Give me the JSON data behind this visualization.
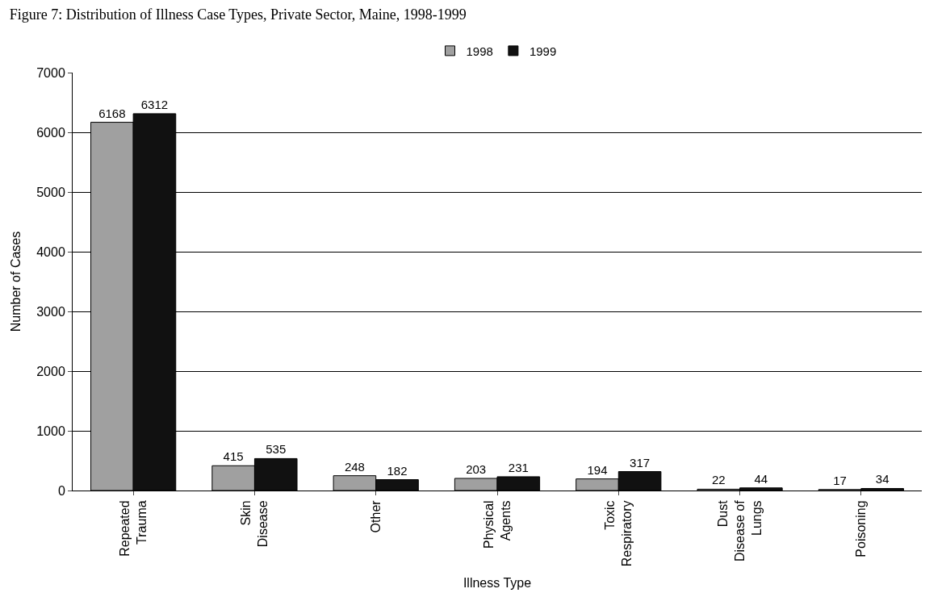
{
  "chart_data": {
    "type": "bar",
    "title": "Figure 7: Distribution of Illness Case Types, Private Sector, Maine, 1998-1999",
    "xlabel": "Illness Type",
    "ylabel": "Number of Cases",
    "categories": [
      "Repeated Trauma",
      "Skin Disease",
      "Other",
      "Physical Agents",
      "Toxic Respiratory",
      "Dust Disease of Lungs",
      "Poisoning"
    ],
    "series": [
      {
        "name": "1998",
        "color": "#a0a0a0",
        "values": [
          6168,
          415,
          248,
          203,
          194,
          22,
          17
        ]
      },
      {
        "name": "1999",
        "color": "#111111",
        "values": [
          6312,
          535,
          182,
          231,
          317,
          44,
          34
        ]
      }
    ],
    "ylim": [
      0,
      7000
    ],
    "yticks": [
      0,
      1000,
      2000,
      3000,
      4000,
      5000,
      6000,
      7000
    ],
    "grid": "y",
    "legend": "top",
    "data_labels": true
  }
}
